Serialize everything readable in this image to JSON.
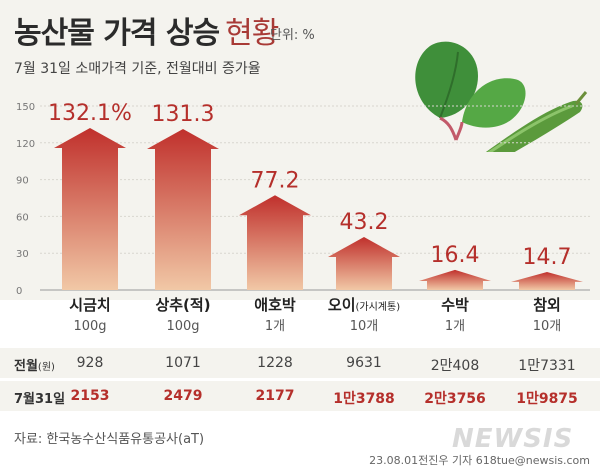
{
  "header": {
    "title": "농산물 가격 상승",
    "title_suffix": "현황",
    "unit": "단위: %",
    "subtitle": "7월 31일 소매가격 기준, 전월대비 증가율"
  },
  "chart_data": {
    "type": "bar",
    "categories": [
      "시금치",
      "상추(적)",
      "애호박",
      "오이(가시계통)",
      "수박",
      "참외"
    ],
    "category_labels": [
      {
        "name": "시금치",
        "note": ""
      },
      {
        "name": "상추(적)",
        "note": ""
      },
      {
        "name": "애호박",
        "note": ""
      },
      {
        "name": "오이",
        "note": "(가시계통)"
      },
      {
        "name": "수박",
        "note": ""
      },
      {
        "name": "참외",
        "note": ""
      }
    ],
    "units": [
      "100g",
      "100g",
      "1개",
      "10개",
      "1개",
      "10개"
    ],
    "values": [
      132.1,
      131.3,
      77.2,
      43.2,
      16.4,
      14.7
    ],
    "value_labels": [
      "132.1%",
      "131.3",
      "77.2",
      "43.2",
      "16.4",
      "14.7"
    ],
    "ylim": [
      0,
      150
    ],
    "yticks": [
      0,
      30,
      60,
      90,
      120,
      150
    ],
    "grid": true,
    "colors": {
      "bar_top": "#c0302c",
      "bar_bottom": "#f1c8a6",
      "value_text": "#b52f2b"
    }
  },
  "table": {
    "rows": [
      {
        "label": "전월",
        "label_note": "(원)",
        "values": [
          "928",
          "1071",
          "1228",
          "9631",
          "2만408",
          "1만7331"
        ]
      },
      {
        "label": "7월31일",
        "label_note": "",
        "values": [
          "2153",
          "2479",
          "2177",
          "1만3788",
          "2만3756",
          "1만9875"
        ]
      }
    ]
  },
  "footer": {
    "source": "자료: 한국농수산식품유통공사(aT)",
    "credit": "23.08.01전진우 기자 618tue@newsis.com",
    "watermark": "NEWSIS"
  },
  "illustration": {
    "icons": [
      "spinach-icon",
      "cucumber-icon"
    ]
  }
}
